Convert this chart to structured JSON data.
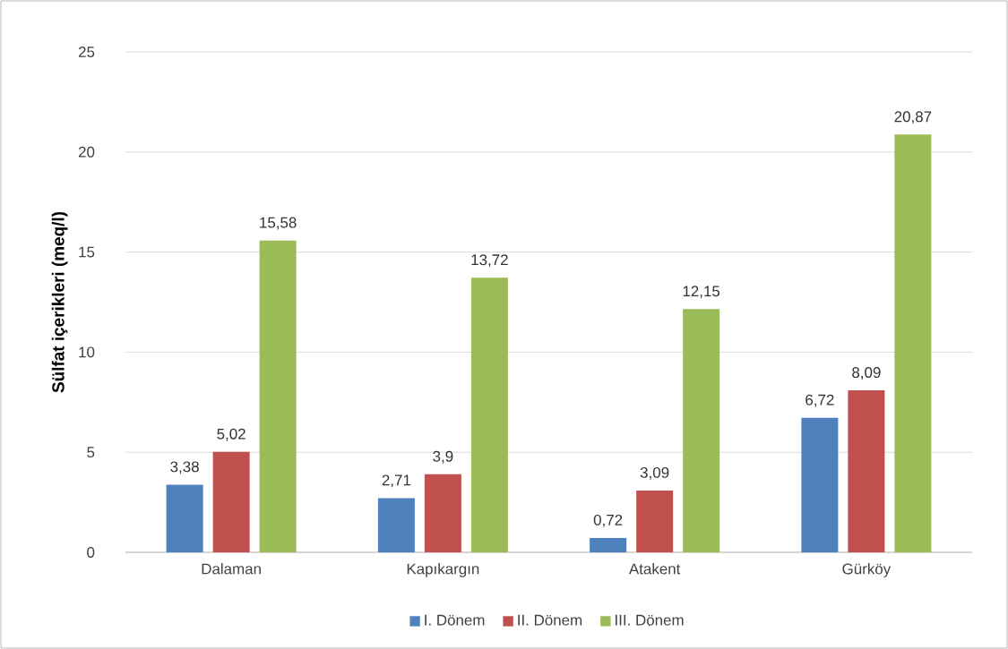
{
  "chart_data": {
    "type": "bar",
    "ylabel": "Sülfat içerikleri (meq/l)",
    "categories": [
      "Dalaman",
      "Kapıkargın",
      "Atakent",
      "Gürköy"
    ],
    "series": [
      {
        "name": "I. Dönem",
        "color": "#4f81bd",
        "values": [
          3.38,
          2.71,
          0.72,
          6.72
        ],
        "value_labels": [
          "3,38",
          "2,71",
          "0,72",
          "6,72"
        ]
      },
      {
        "name": "II. Dönem",
        "color": "#c0504d",
        "values": [
          5.02,
          3.9,
          3.09,
          8.09
        ],
        "value_labels": [
          "5,02",
          "3,9",
          "3,09",
          "8,09"
        ]
      },
      {
        "name": "III. Dönem",
        "color": "#9bbb59",
        "values": [
          15.58,
          13.72,
          12.15,
          20.87
        ],
        "value_labels": [
          "15,58",
          "13,72",
          "12,15",
          "20,87"
        ]
      }
    ],
    "ylim": [
      0,
      25
    ],
    "yticks": [
      0,
      5,
      10,
      15,
      20,
      25
    ],
    "grid": "y",
    "legend": "bottom"
  }
}
